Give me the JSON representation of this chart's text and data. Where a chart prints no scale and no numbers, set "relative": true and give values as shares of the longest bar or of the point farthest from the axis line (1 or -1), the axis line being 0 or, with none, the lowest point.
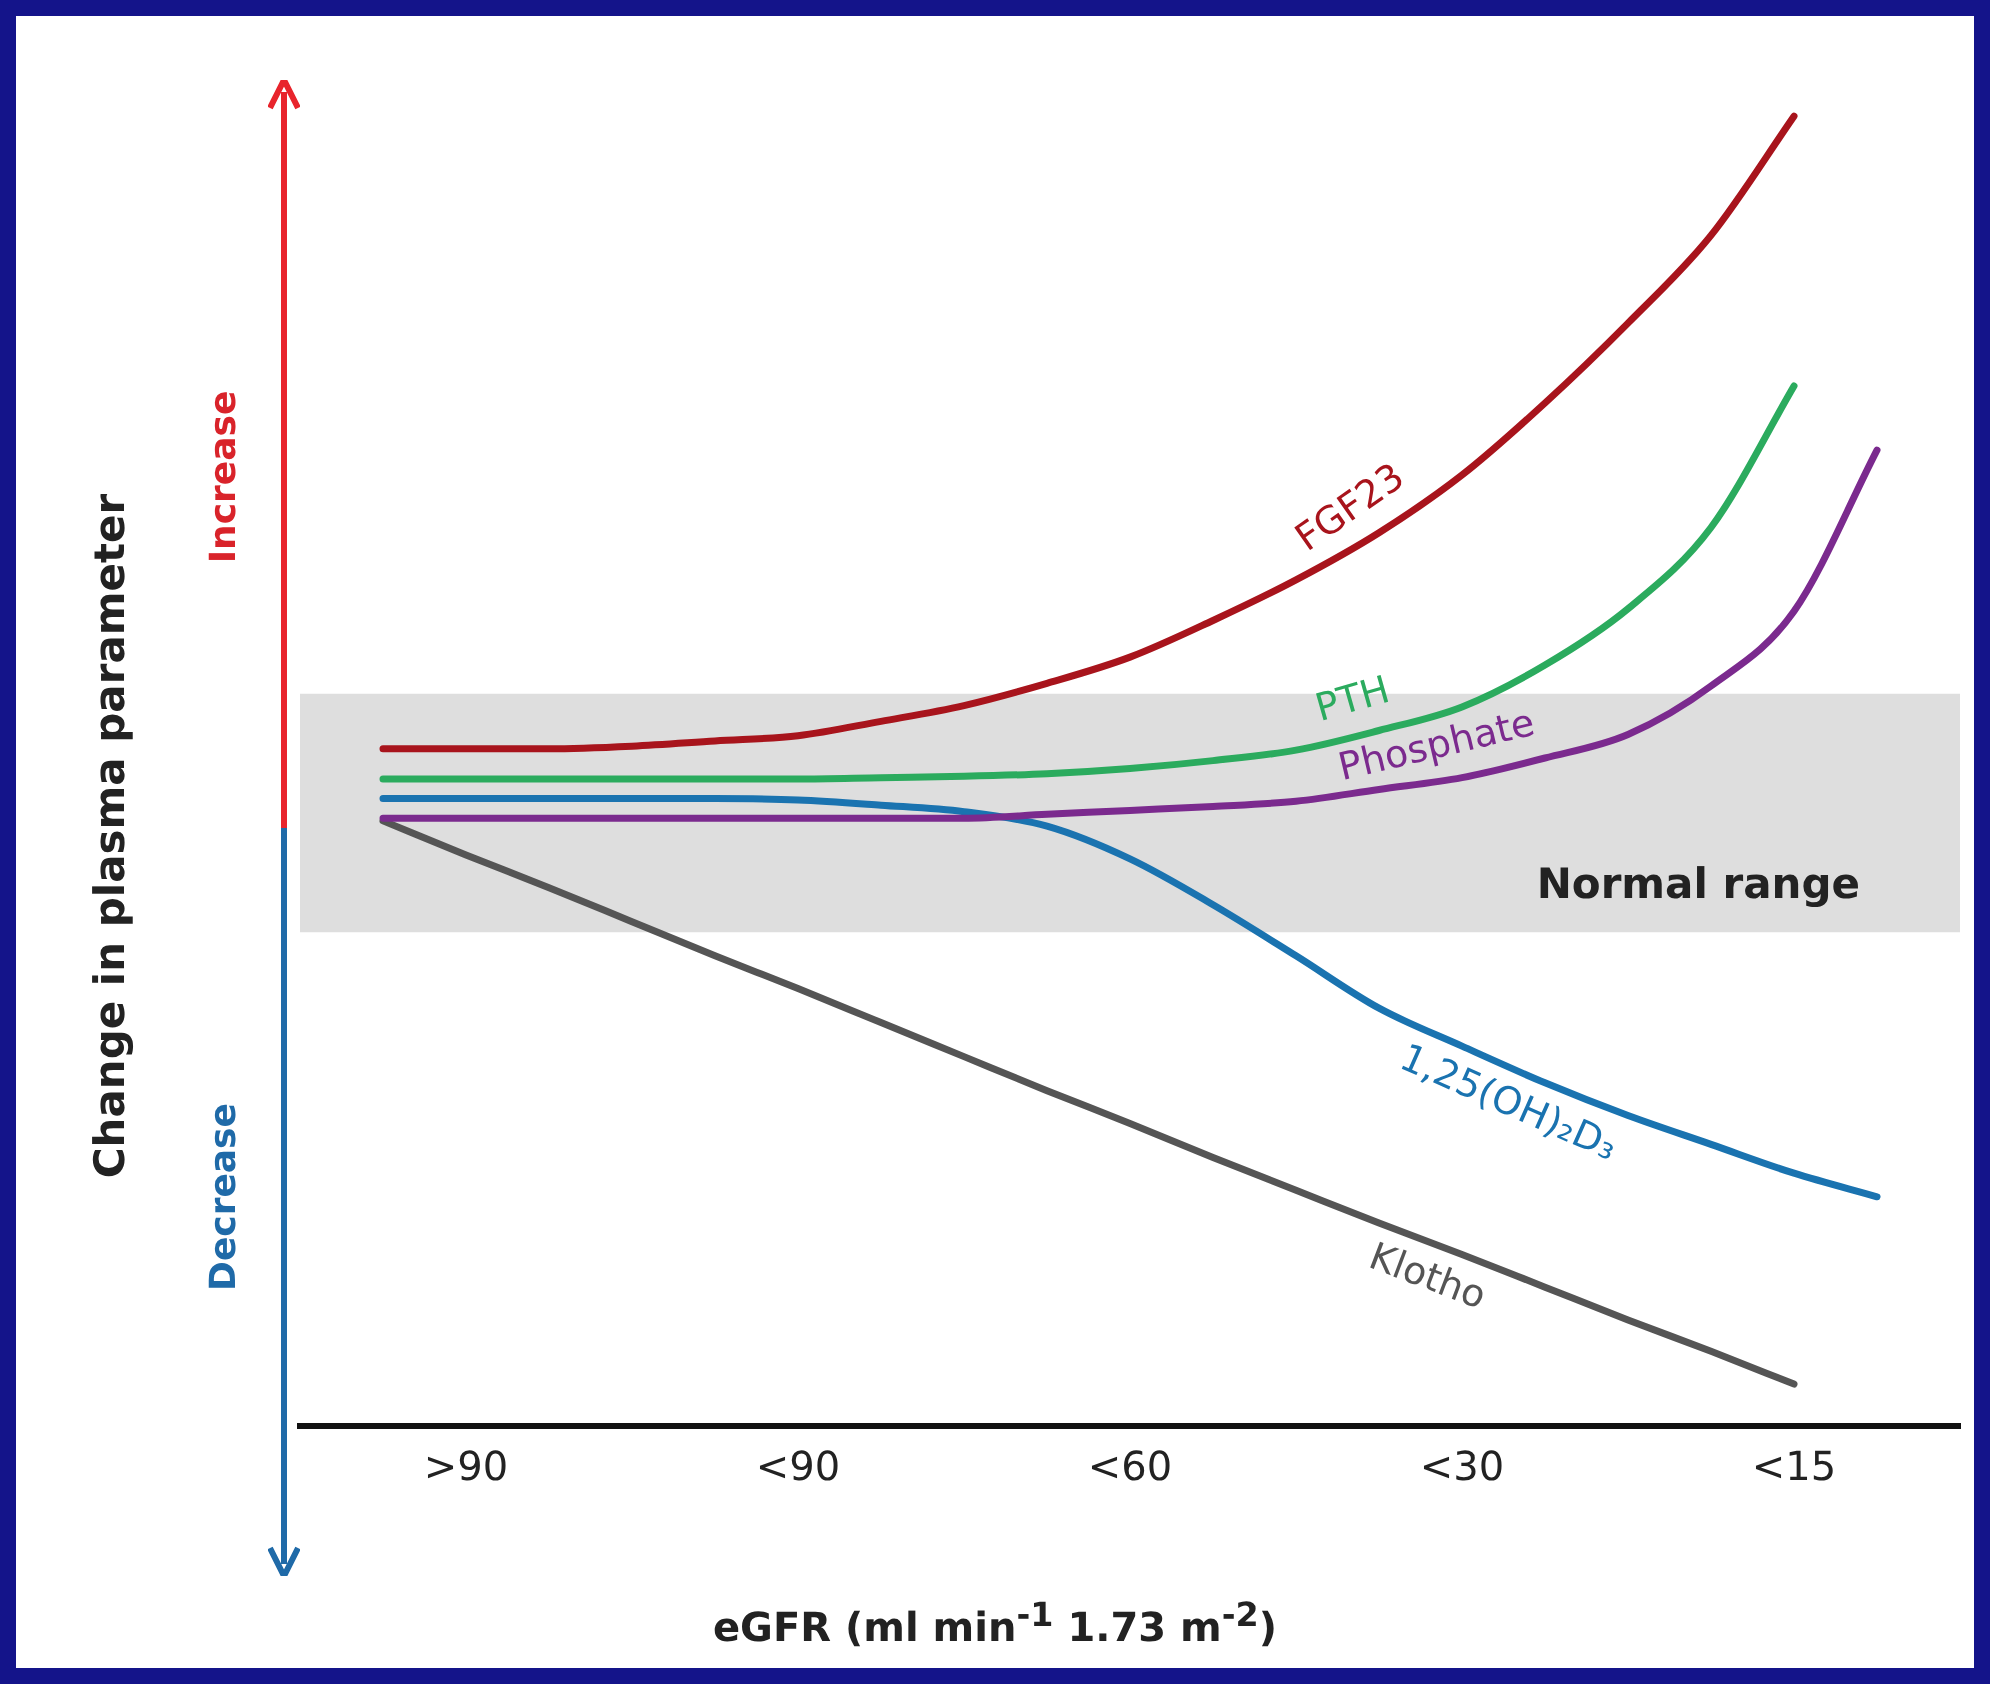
{
  "chart_data": {
    "type": "line",
    "relative": true,
    "xlabel": "eGFR (ml min$^{-1}$ 1.73 m$^{-2}$)",
    "ylabel": "Change in plasma parameter",
    "annotations": [
      "Increase",
      "Decrease"
    ],
    "categories": [
      null,
      null,
      ">90",
      null,
      null,
      null,
      "<90",
      null,
      null,
      null,
      "<60",
      null,
      null,
      null,
      "<30",
      null,
      null,
      null,
      "<15",
      null,
      null
    ],
    "bands": [
      {
        "axis": "y",
        "from": 0.377,
        "to": 0.559,
        "label": "Normal range",
        "color": "#c8c8c8"
      }
    ],
    "series": [
      {
        "name": "FGF23",
        "color": "#a8141c",
        "values": [
          null,
          0.517,
          0.517,
          0.517,
          0.519,
          0.523,
          0.527,
          0.538,
          0.55,
          0.567,
          0.587,
          0.615,
          0.646,
          0.682,
          0.726,
          0.781,
          0.842,
          0.909,
          1.0,
          null,
          null
        ]
      },
      {
        "name": "PTH",
        "color": "#2bab5e",
        "values": [
          null,
          0.494,
          0.494,
          0.494,
          0.494,
          0.494,
          0.494,
          0.495,
          0.496,
          0.498,
          0.502,
          0.508,
          0.516,
          0.531,
          0.549,
          0.581,
          0.624,
          0.686,
          0.794,
          null,
          null
        ]
      },
      {
        "name": "Phosphate",
        "color": "#7b2a8e",
        "values": [
          null,
          0.464,
          0.464,
          0.464,
          0.464,
          0.464,
          0.464,
          0.464,
          0.464,
          0.467,
          0.47,
          0.473,
          0.477,
          0.486,
          0.495,
          0.51,
          0.528,
          0.565,
          0.622,
          0.745,
          null
        ]
      },
      {
        "name": "1,25(OH)₂D₃",
        "color": "#1a73b0",
        "values": [
          null,
          0.479,
          0.479,
          0.479,
          0.479,
          0.479,
          0.478,
          0.474,
          0.469,
          0.458,
          0.433,
          0.398,
          0.359,
          0.319,
          0.29,
          0.262,
          0.237,
          0.215,
          0.193,
          0.175,
          null
        ]
      },
      {
        "name": "Klotho",
        "color": "#555555",
        "values": [
          null,
          0.462,
          0.436,
          0.411,
          0.385,
          0.359,
          0.334,
          0.308,
          0.282,
          0.256,
          0.231,
          0.205,
          0.18,
          0.155,
          0.131,
          0.106,
          0.081,
          0.057,
          0.032,
          null,
          null
        ]
      }
    ]
  }
}
